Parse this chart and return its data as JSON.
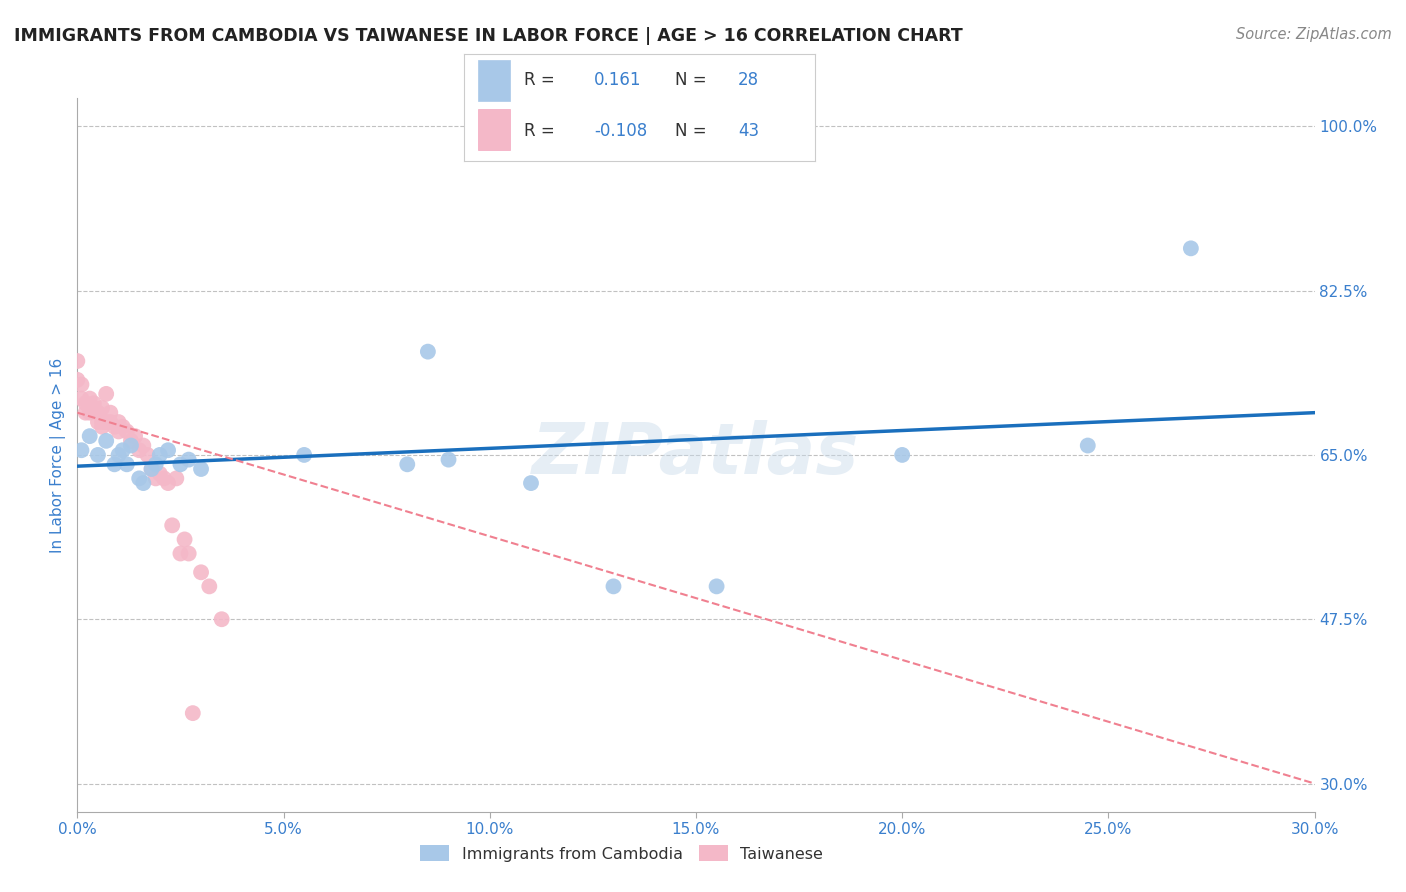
{
  "title": "IMMIGRANTS FROM CAMBODIA VS TAIWANESE IN LABOR FORCE | AGE > 16 CORRELATION CHART",
  "source": "Source: ZipAtlas.com",
  "ylabel": "In Labor Force | Age > 16",
  "xlim": [
    0.0,
    0.3
  ],
  "ylim": [
    0.27,
    1.03
  ],
  "yticks": [
    0.3,
    0.475,
    0.65,
    0.825,
    1.0
  ],
  "ytick_labels": [
    "30.0%",
    "47.5%",
    "65.0%",
    "82.5%",
    "100.0%"
  ],
  "xticks": [
    0.0,
    0.05,
    0.1,
    0.15,
    0.2,
    0.25,
    0.3
  ],
  "xtick_labels": [
    "0.0%",
    "5.0%",
    "10.0%",
    "15.0%",
    "20.0%",
    "25.0%",
    "30.0%"
  ],
  "watermark": "ZIPatlas",
  "cambodia_R": 0.161,
  "cambodia_N": 28,
  "taiwanese_R": -0.108,
  "taiwanese_N": 43,
  "cambodia_color": "#a8c8e8",
  "taiwanese_color": "#f4b8c8",
  "cambodia_line_color": "#1a6fbd",
  "taiwanese_line_color": "#f08090",
  "grid_color": "#bbbbbb",
  "title_color": "#222222",
  "axis_label_color": "#3a7fcd",
  "source_color": "#888888",
  "legend_text_color": "#333333",
  "legend_value_color": "#3a7fcd",
  "cambodia_scatter_x": [
    0.001,
    0.003,
    0.005,
    0.007,
    0.009,
    0.01,
    0.011,
    0.012,
    0.013,
    0.015,
    0.016,
    0.018,
    0.019,
    0.02,
    0.022,
    0.025,
    0.027,
    0.03,
    0.055,
    0.08,
    0.085,
    0.09,
    0.11,
    0.13,
    0.155,
    0.2,
    0.245,
    0.27
  ],
  "cambodia_scatter_y": [
    0.655,
    0.67,
    0.65,
    0.665,
    0.64,
    0.65,
    0.655,
    0.64,
    0.66,
    0.625,
    0.62,
    0.635,
    0.64,
    0.65,
    0.655,
    0.64,
    0.645,
    0.635,
    0.65,
    0.64,
    0.76,
    0.645,
    0.62,
    0.51,
    0.51,
    0.65,
    0.66,
    0.87
  ],
  "taiwanese_scatter_x": [
    0.0,
    0.0,
    0.001,
    0.001,
    0.002,
    0.002,
    0.003,
    0.003,
    0.004,
    0.004,
    0.005,
    0.005,
    0.006,
    0.006,
    0.006,
    0.007,
    0.007,
    0.008,
    0.008,
    0.009,
    0.01,
    0.01,
    0.011,
    0.012,
    0.013,
    0.014,
    0.015,
    0.016,
    0.017,
    0.018,
    0.019,
    0.02,
    0.021,
    0.022,
    0.023,
    0.024,
    0.025,
    0.026,
    0.027,
    0.028,
    0.03,
    0.032,
    0.035
  ],
  "taiwanese_scatter_y": [
    0.75,
    0.73,
    0.725,
    0.71,
    0.705,
    0.695,
    0.71,
    0.695,
    0.7,
    0.705,
    0.695,
    0.685,
    0.7,
    0.685,
    0.68,
    0.685,
    0.715,
    0.695,
    0.685,
    0.68,
    0.685,
    0.675,
    0.68,
    0.675,
    0.665,
    0.67,
    0.655,
    0.66,
    0.65,
    0.635,
    0.625,
    0.63,
    0.625,
    0.62,
    0.575,
    0.625,
    0.545,
    0.56,
    0.545,
    0.375,
    0.525,
    0.51,
    0.475
  ],
  "background_color": "#ffffff",
  "cambodia_line_x0": 0.0,
  "cambodia_line_y0": 0.638,
  "cambodia_line_x1": 0.3,
  "cambodia_line_y1": 0.695,
  "taiwanese_line_x0": 0.0,
  "taiwanese_line_y0": 0.695,
  "taiwanese_line_x1": 0.3,
  "taiwanese_line_y1": 0.3
}
